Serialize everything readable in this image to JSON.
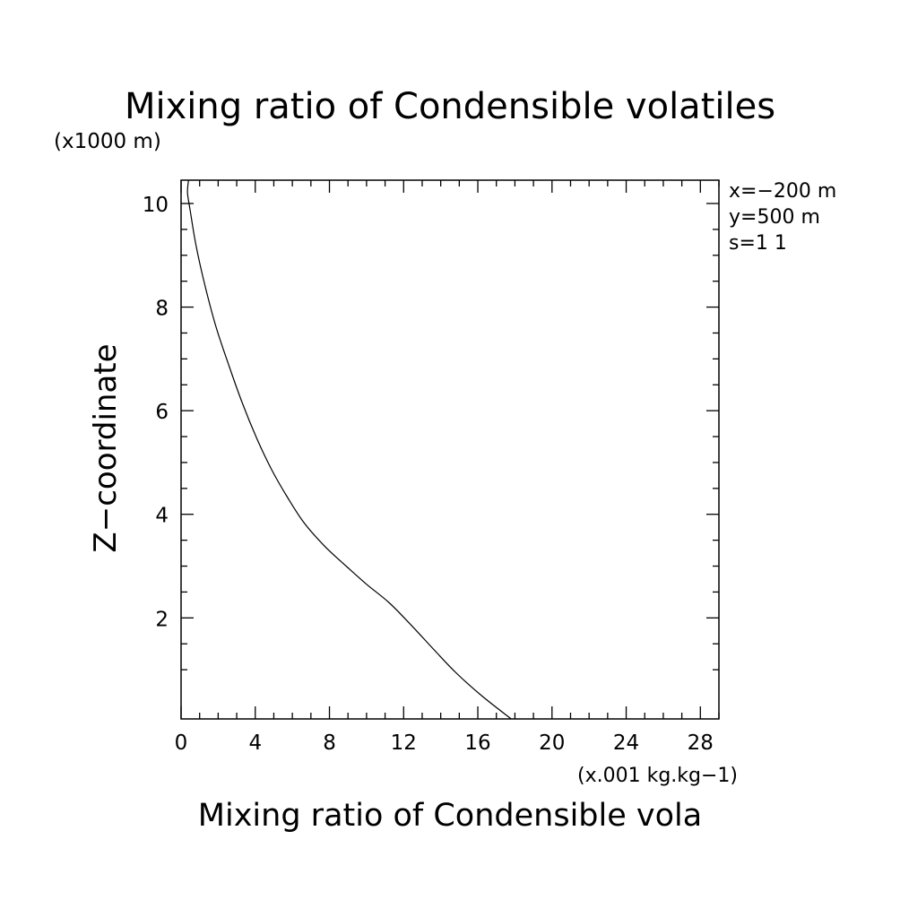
{
  "chart_data": {
    "type": "line",
    "title": "Mixing ratio of Condensible volatiles",
    "xlabel": "Mixing ratio of Condensible vola",
    "xunit": "(x.001 kg.kg−1)",
    "ylabel": "Z−coordinate",
    "yunit": "(x1000 m)",
    "xlim": [
      0,
      29
    ],
    "ylim": [
      0.05,
      10.45
    ],
    "xticks": [
      0,
      4,
      8,
      12,
      16,
      20,
      24,
      28
    ],
    "xtick_labels": [
      "0",
      "4",
      "8",
      "12",
      "16",
      "20",
      "24",
      "28"
    ],
    "yticks": [
      2,
      4,
      6,
      8,
      10
    ],
    "ytick_labels": [
      "2",
      "4",
      "6",
      "8",
      "10"
    ],
    "grid": false,
    "annotations": [
      "x=−200 m",
      "y=500 m",
      "s=1 1"
    ],
    "series": [
      {
        "x": [
          17.8,
          16.2,
          14.8,
          13.6,
          12.3,
          11.2,
          10.0,
          8.9,
          7.7,
          6.6,
          5.7,
          4.9,
          4.1,
          3.3,
          2.6,
          1.9,
          1.3,
          0.8,
          0.5,
          0.35,
          0.4
        ],
        "y": [
          0.05,
          0.5,
          0.95,
          1.4,
          1.9,
          2.3,
          2.65,
          3.0,
          3.4,
          3.85,
          4.35,
          4.85,
          5.45,
          6.15,
          6.85,
          7.6,
          8.4,
          9.2,
          9.85,
          10.2,
          10.45
        ]
      }
    ]
  }
}
